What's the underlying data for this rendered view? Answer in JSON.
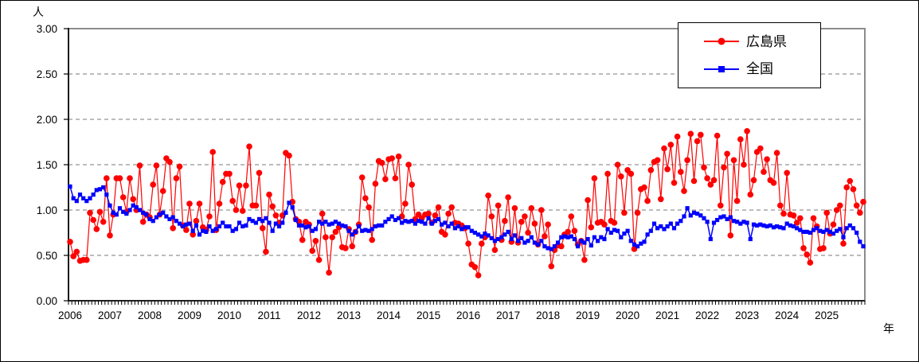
{
  "chart_data": {
    "type": "line",
    "title": "",
    "unit_label": "人",
    "xlabel": "年",
    "ylabel": "",
    "ylim": [
      0,
      3
    ],
    "ytick_values": [
      0,
      0.5,
      1,
      1.5,
      2,
      2.5,
      3
    ],
    "ytick_labels": [
      "0.00",
      "0.50",
      "1.00",
      "1.50",
      "2.00",
      "2.50",
      "3.00"
    ],
    "year_labels": [
      "2006",
      "2007",
      "2008",
      "2009",
      "2010",
      "2011",
      "2012",
      "2013",
      "2014",
      "2015",
      "2016",
      "2017",
      "2018",
      "2019",
      "2020",
      "2021",
      "2022",
      "2023",
      "2024",
      "2025"
    ],
    "months_per_year": 12,
    "grid": "dashed-horizontal",
    "legend_position": "top-right",
    "axis_color": "#000000",
    "border_color": "#8c8c8c",
    "gridline_color": "#7a7a7a",
    "series": [
      {
        "name": "広島県",
        "color": "#ff0000",
        "marker": "circle",
        "values": [
          0.65,
          0.49,
          0.54,
          0.44,
          0.45,
          0.45,
          0.97,
          0.89,
          0.79,
          0.98,
          0.87,
          1.35,
          0.72,
          0.95,
          1.35,
          1.35,
          1.14,
          0.98,
          1.35,
          1.12,
          1.0,
          1.49,
          0.87,
          0.95,
          0.92,
          1.28,
          1.49,
          0.95,
          1.21,
          1.57,
          1.53,
          0.8,
          1.35,
          1.48,
          0.83,
          0.78,
          1.07,
          0.73,
          0.88,
          1.07,
          0.81,
          0.78,
          0.93,
          1.64,
          0.78,
          1.07,
          1.31,
          1.4,
          1.4,
          1.1,
          1.0,
          1.27,
          0.99,
          1.27,
          1.7,
          1.05,
          1.05,
          1.41,
          0.8,
          0.54,
          1.17,
          1.04,
          0.94,
          0.86,
          0.94,
          1.63,
          1.6,
          1.09,
          0.9,
          0.87,
          0.67,
          0.87,
          0.84,
          0.55,
          0.66,
          0.45,
          0.96,
          0.7,
          0.31,
          0.7,
          0.76,
          0.81,
          0.59,
          0.58,
          0.79,
          0.6,
          0.76,
          0.84,
          1.36,
          1.13,
          1.03,
          0.67,
          1.29,
          1.54,
          1.52,
          1.34,
          1.56,
          1.57,
          1.35,
          1.59,
          0.93,
          1.07,
          1.5,
          1.28,
          0.9,
          0.95,
          0.91,
          0.95,
          0.96,
          0.86,
          0.94,
          1.03,
          0.76,
          0.73,
          0.96,
          1.03,
          0.86,
          0.85,
          0.83,
          0.8,
          0.63,
          0.4,
          0.37,
          0.28,
          0.63,
          0.7,
          1.16,
          0.93,
          0.56,
          1.05,
          0.67,
          0.88,
          1.14,
          0.65,
          1.02,
          0.64,
          0.87,
          0.93,
          0.75,
          1.02,
          0.85,
          0.62,
          1.0,
          0.71,
          0.84,
          0.38,
          0.56,
          0.61,
          0.6,
          0.73,
          0.76,
          0.93,
          0.77,
          0.62,
          0.66,
          0.45,
          1.11,
          0.81,
          1.35,
          0.86,
          0.87,
          0.84,
          1.4,
          0.88,
          0.86,
          1.5,
          1.37,
          0.97,
          1.44,
          1.4,
          0.57,
          0.97,
          1.23,
          1.25,
          1.1,
          1.44,
          1.53,
          1.55,
          1.12,
          1.68,
          1.45,
          1.72,
          1.3,
          1.81,
          1.42,
          1.21,
          1.55,
          1.84,
          1.32,
          1.76,
          1.83,
          1.47,
          1.35,
          1.28,
          1.33,
          1.82,
          1.05,
          1.47,
          1.62,
          0.72,
          1.55,
          1.1,
          1.78,
          1.5,
          1.87,
          1.17,
          1.33,
          1.64,
          1.68,
          1.42,
          1.56,
          1.33,
          1.3,
          1.63,
          1.05,
          0.96,
          1.41,
          0.95,
          0.94,
          0.86,
          0.91,
          0.58,
          0.51,
          0.42,
          0.91,
          0.82,
          0.57,
          0.58,
          0.97,
          0.74,
          0.84,
          1.0,
          1.05,
          0.63,
          1.25,
          1.32,
          1.23,
          1.05,
          0.97,
          1.09
        ]
      },
      {
        "name": "全国",
        "color": "#0000ff",
        "marker": "square",
        "values": [
          1.26,
          1.13,
          1.1,
          1.17,
          1.13,
          1.1,
          1.13,
          1.17,
          1.22,
          1.23,
          1.25,
          1.17,
          1.05,
          0.97,
          0.95,
          1.02,
          0.98,
          0.96,
          1.0,
          1.05,
          1.03,
          1.0,
          0.97,
          0.95,
          0.9,
          0.88,
          0.92,
          0.95,
          0.97,
          0.93,
          0.9,
          0.92,
          0.88,
          0.85,
          0.82,
          0.84,
          0.85,
          0.77,
          0.83,
          0.73,
          0.77,
          0.76,
          0.82,
          0.77,
          0.79,
          0.82,
          0.86,
          0.82,
          0.82,
          0.77,
          0.79,
          0.86,
          0.82,
          0.83,
          0.9,
          0.88,
          0.86,
          0.9,
          0.88,
          0.91,
          0.86,
          0.77,
          0.85,
          0.82,
          0.86,
          0.97,
          1.08,
          1.03,
          0.89,
          0.83,
          0.83,
          0.81,
          0.82,
          0.77,
          0.79,
          0.87,
          0.85,
          0.87,
          0.84,
          0.85,
          0.87,
          0.85,
          0.83,
          0.82,
          0.77,
          0.73,
          0.76,
          0.82,
          0.77,
          0.78,
          0.77,
          0.79,
          0.82,
          0.83,
          0.83,
          0.87,
          0.9,
          0.93,
          0.89,
          0.91,
          0.86,
          0.88,
          0.87,
          0.88,
          0.85,
          0.88,
          0.87,
          0.85,
          0.91,
          0.85,
          0.88,
          0.9,
          0.84,
          0.86,
          0.82,
          0.85,
          0.8,
          0.82,
          0.79,
          0.81,
          0.81,
          0.77,
          0.75,
          0.73,
          0.71,
          0.74,
          0.72,
          0.69,
          0.66,
          0.68,
          0.7,
          0.73,
          0.76,
          0.68,
          0.72,
          0.66,
          0.69,
          0.64,
          0.66,
          0.7,
          0.64,
          0.62,
          0.66,
          0.6,
          0.58,
          0.57,
          0.6,
          0.64,
          0.7,
          0.71,
          0.7,
          0.71,
          0.68,
          0.6,
          0.66,
          0.64,
          0.68,
          0.61,
          0.7,
          0.66,
          0.7,
          0.68,
          0.79,
          0.75,
          0.78,
          0.77,
          0.7,
          0.74,
          0.77,
          0.66,
          0.62,
          0.6,
          0.63,
          0.65,
          0.73,
          0.77,
          0.85,
          0.8,
          0.82,
          0.79,
          0.82,
          0.85,
          0.8,
          0.85,
          0.88,
          0.93,
          1.02,
          0.94,
          0.97,
          0.96,
          0.94,
          0.91,
          0.87,
          0.68,
          0.86,
          0.89,
          0.92,
          0.93,
          0.9,
          0.92,
          0.88,
          0.87,
          0.85,
          0.87,
          0.86,
          0.68,
          0.84,
          0.83,
          0.84,
          0.83,
          0.82,
          0.83,
          0.81,
          0.82,
          0.81,
          0.8,
          0.85,
          0.83,
          0.82,
          0.8,
          0.78,
          0.76,
          0.76,
          0.75,
          0.78,
          0.8,
          0.77,
          0.76,
          0.78,
          0.76,
          0.74,
          0.77,
          0.79,
          0.7,
          0.8,
          0.83,
          0.8,
          0.75,
          0.65,
          0.6
        ]
      }
    ]
  }
}
